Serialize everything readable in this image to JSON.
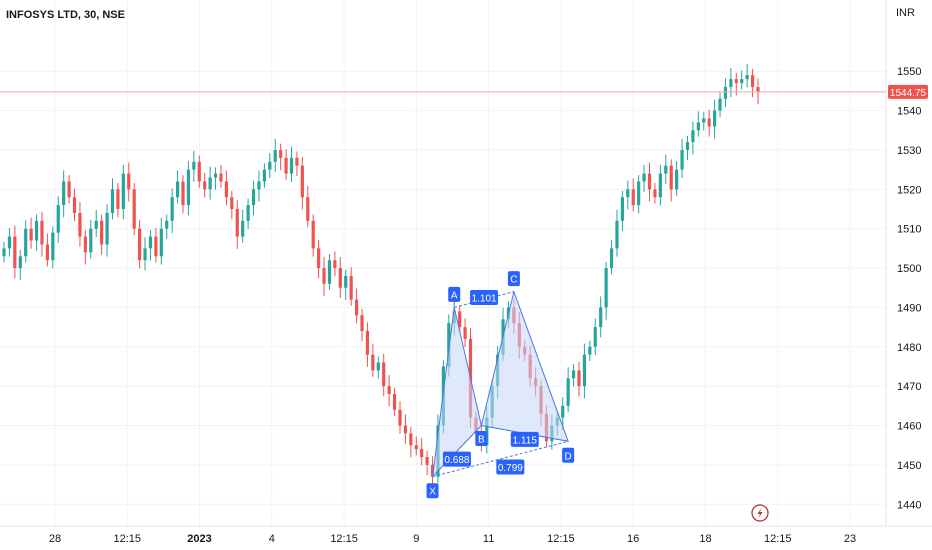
{
  "header": {
    "title": "INFOSYS LTD, 30, NSE",
    "currency": "INR"
  },
  "colors": {
    "up": "#26a69a",
    "down": "#ef5350",
    "pattern_fill": "#c7d6f7",
    "pattern_line": "#4a7ae0",
    "label_bg": "#2962ff",
    "price_line": "#f7a8a6",
    "price_tag": "#ef5350"
  },
  "chart_data": {
    "type": "candlestick",
    "title": "INFOSYS LTD, 30, NSE",
    "y_unit": "INR",
    "ylim": [
      1436,
      1562
    ],
    "y_ticks": [
      1440,
      1450,
      1460,
      1470,
      1480,
      1490,
      1500,
      1510,
      1520,
      1530,
      1540,
      1550
    ],
    "x_tick_labels": [
      "28",
      "12:15",
      "2023",
      "4",
      "12:15",
      "9",
      "11",
      "12:15",
      "16",
      "18",
      "12:15",
      "23"
    ],
    "last_price": 1544.75,
    "last_price_label": "1544.75",
    "series_close": [
      1505,
      1508,
      1500,
      1503,
      1510,
      1507,
      1512,
      1506,
      1502,
      1509,
      1516,
      1522,
      1518,
      1514,
      1508,
      1504,
      1510,
      1512,
      1506,
      1514,
      1520,
      1515,
      1524,
      1520,
      1510,
      1502,
      1505,
      1508,
      1503,
      1510,
      1512,
      1518,
      1522,
      1516,
      1525,
      1527,
      1522,
      1520,
      1523,
      1524,
      1522,
      1518,
      1515,
      1508,
      1512,
      1516,
      1520,
      1522,
      1525,
      1527,
      1530,
      1528,
      1524,
      1528,
      1526,
      1518,
      1512,
      1505,
      1500,
      1496,
      1502,
      1500,
      1495,
      1498,
      1492,
      1488,
      1484,
      1478,
      1474,
      1476,
      1470,
      1468,
      1464,
      1460,
      1458,
      1455,
      1454,
      1452,
      1450,
      1447,
      1460,
      1475,
      1486,
      1489,
      1485,
      1482,
      1462,
      1458,
      1455,
      1462,
      1470,
      1478,
      1487,
      1490,
      1486,
      1480,
      1478,
      1472,
      1470,
      1463,
      1456,
      1460,
      1462,
      1465,
      1472,
      1474,
      1470,
      1478,
      1480,
      1485,
      1490,
      1500,
      1505,
      1512,
      1518,
      1520,
      1516,
      1522,
      1524,
      1520,
      1518,
      1524,
      1526,
      1520,
      1525,
      1530,
      1532,
      1535,
      1537,
      1538,
      1536,
      1540,
      1543,
      1546,
      1548,
      1547,
      1548,
      1549,
      1546,
      1544.75
    ],
    "pattern": {
      "points": [
        {
          "label": "X",
          "value": 1447
        },
        {
          "label": "A",
          "value": 1490
        },
        {
          "label": "B",
          "value": 1460
        },
        {
          "label": "C",
          "value": 1494
        },
        {
          "label": "D",
          "value": 1456
        }
      ],
      "ratios": [
        "1.101",
        "0.688",
        "1.115",
        "0.799"
      ]
    }
  }
}
